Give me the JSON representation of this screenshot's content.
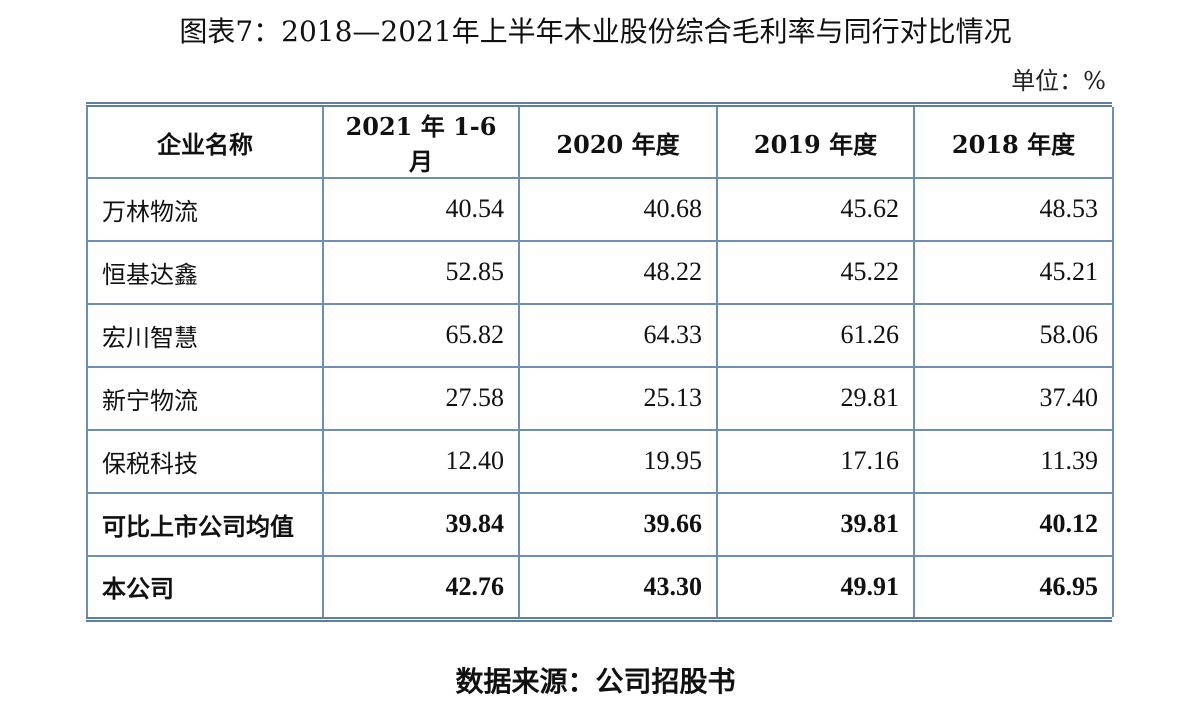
{
  "title": "图表7：2018—2021年上半年木业股份综合毛利率与同行对比情况",
  "unit": "单位：%",
  "table": {
    "headers": [
      "企业名称",
      "2021 年 1-6 月",
      "2020 年度",
      "2019 年度",
      "2018 年度"
    ],
    "rows": [
      {
        "name": "万林物流",
        "values": [
          "40.54",
          "40.68",
          "45.62",
          "48.53"
        ]
      },
      {
        "name": "恒基达鑫",
        "values": [
          "52.85",
          "48.22",
          "45.22",
          "45.21"
        ]
      },
      {
        "name": "宏川智慧",
        "values": [
          "65.82",
          "64.33",
          "61.26",
          "58.06"
        ]
      },
      {
        "name": "新宁物流",
        "values": [
          "27.58",
          "25.13",
          "29.81",
          "37.40"
        ]
      },
      {
        "name": "保税科技",
        "values": [
          "12.40",
          "19.95",
          "17.16",
          "11.39"
        ]
      },
      {
        "name": "可比上市公司均值",
        "values": [
          "39.84",
          "39.66",
          "39.81",
          "40.12"
        ]
      },
      {
        "name": "本公司",
        "values": [
          "42.76",
          "43.30",
          "49.91",
          "46.95"
        ]
      }
    ]
  },
  "source": "数据来源：公司招股书",
  "colors": {
    "border": "#6d8fb3",
    "double_rule": "#5b7fa6"
  }
}
